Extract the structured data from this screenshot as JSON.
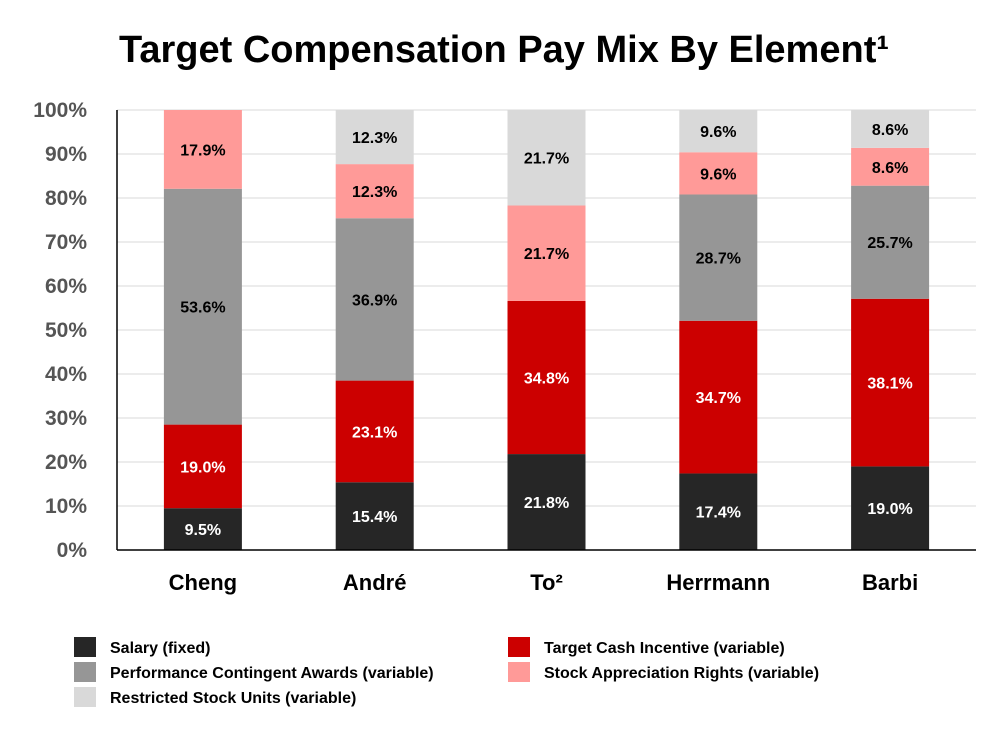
{
  "chart_data": {
    "type": "bar",
    "stacked": true,
    "title": "Target Compensation Pay Mix By Element¹",
    "xlabel": "",
    "ylabel": "",
    "ylim": [
      0,
      100
    ],
    "yticks": [
      "0%",
      "10%",
      "20%",
      "30%",
      "40%",
      "50%",
      "60%",
      "70%",
      "80%",
      "90%",
      "100%"
    ],
    "grid": true,
    "legend_position": "bottom",
    "categories": [
      "Cheng",
      "André",
      "To²",
      "Herrmann",
      "Barbi"
    ],
    "series": [
      {
        "name": "Salary (fixed)",
        "color": "#262626",
        "label_color": "#ffffff",
        "values": [
          9.5,
          15.4,
          21.8,
          17.4,
          19.0
        ],
        "labels": [
          "9.5%",
          "15.4%",
          "21.8%",
          "17.4%",
          "19.0%"
        ]
      },
      {
        "name": "Target Cash Incentive (variable)",
        "color": "#cc0000",
        "label_color": "#ffffff",
        "values": [
          19.0,
          23.1,
          34.8,
          34.7,
          38.1
        ],
        "labels": [
          "19.0%",
          "23.1%",
          "34.8%",
          "34.7%",
          "38.1%"
        ]
      },
      {
        "name": "Performance Contingent Awards (variable)",
        "color": "#969696",
        "label_color": "#000000",
        "values": [
          53.6,
          36.9,
          0,
          28.7,
          25.7
        ],
        "labels": [
          "53.6%",
          "36.9%",
          "",
          "28.7%",
          "25.7%"
        ]
      },
      {
        "name": "Stock Appreciation Rights (variable)",
        "color": "#ff9a98",
        "label_color": "#000000",
        "values": [
          17.9,
          12.3,
          21.7,
          9.6,
          8.6
        ],
        "labels": [
          "17.9%",
          "12.3%",
          "21.7%",
          "9.6%",
          "8.6%"
        ]
      },
      {
        "name": "Restricted Stock Units (variable)",
        "color": "#d9d9d9",
        "label_color": "#000000",
        "values": [
          0,
          12.3,
          21.7,
          9.6,
          8.6
        ],
        "labels": [
          "",
          "12.3%",
          "21.7%",
          "9.6%",
          "8.6%"
        ]
      }
    ],
    "legend_order": [
      0,
      1,
      2,
      3,
      4
    ]
  }
}
